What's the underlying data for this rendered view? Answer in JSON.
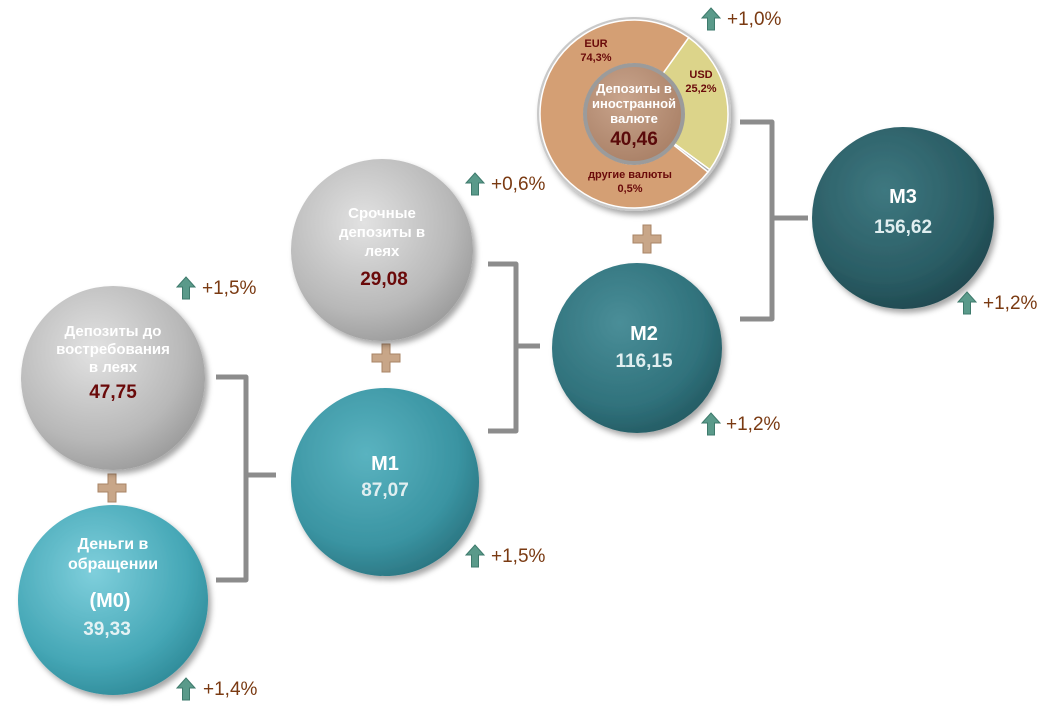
{
  "nodes": {
    "m0": {
      "title_line1": "Деньги в",
      "title_line2": "обращении",
      "code": "(M0)",
      "value": "39,33",
      "change": "+1,4%"
    },
    "demand": {
      "title_line1": "Депозиты до",
      "title_line2": "востребования",
      "title_line3": "в леях",
      "value": "47,75",
      "change": "+1,5%"
    },
    "m1": {
      "title": "M1",
      "value": "87,07",
      "change": "+1,5%"
    },
    "term": {
      "title_line1": "Срочные",
      "title_line2": "депозиты в",
      "title_line3": "леях",
      "value": "29,08",
      "change": "+0,6%"
    },
    "m2": {
      "title": "M2",
      "value": "116,15",
      "change": "+1,2%"
    },
    "fx": {
      "title_line1": "Депозиты в",
      "title_line2": "иностранной",
      "title_line3": "валюте",
      "value": "40,46",
      "change": "+1,0%",
      "segments": [
        {
          "name": "EUR",
          "label": "74,3%",
          "share": 74.3,
          "color": "#d49f74"
        },
        {
          "name": "USD",
          "label": "25,2%",
          "share": 25.2,
          "color": "#dcd48a"
        },
        {
          "name": "другие валюты",
          "label": "0,5%",
          "share": 0.5,
          "color": "#a8a8a8"
        }
      ]
    },
    "m3": {
      "title": "M3",
      "value": "156,62",
      "change": "+1,2%"
    }
  },
  "colors": {
    "grey_circle": "#b4b4b4",
    "teal_light": "#4aa8b8",
    "teal_mid": "#3a8f9c",
    "teal_dark": "#2e6e78",
    "teal_darkest": "#285a62",
    "value_dark_red": "#6a0a0a",
    "plus_sign": "#c4a484",
    "arrow_green": "#5a9a8a",
    "bracket": "#8a8a8a"
  }
}
